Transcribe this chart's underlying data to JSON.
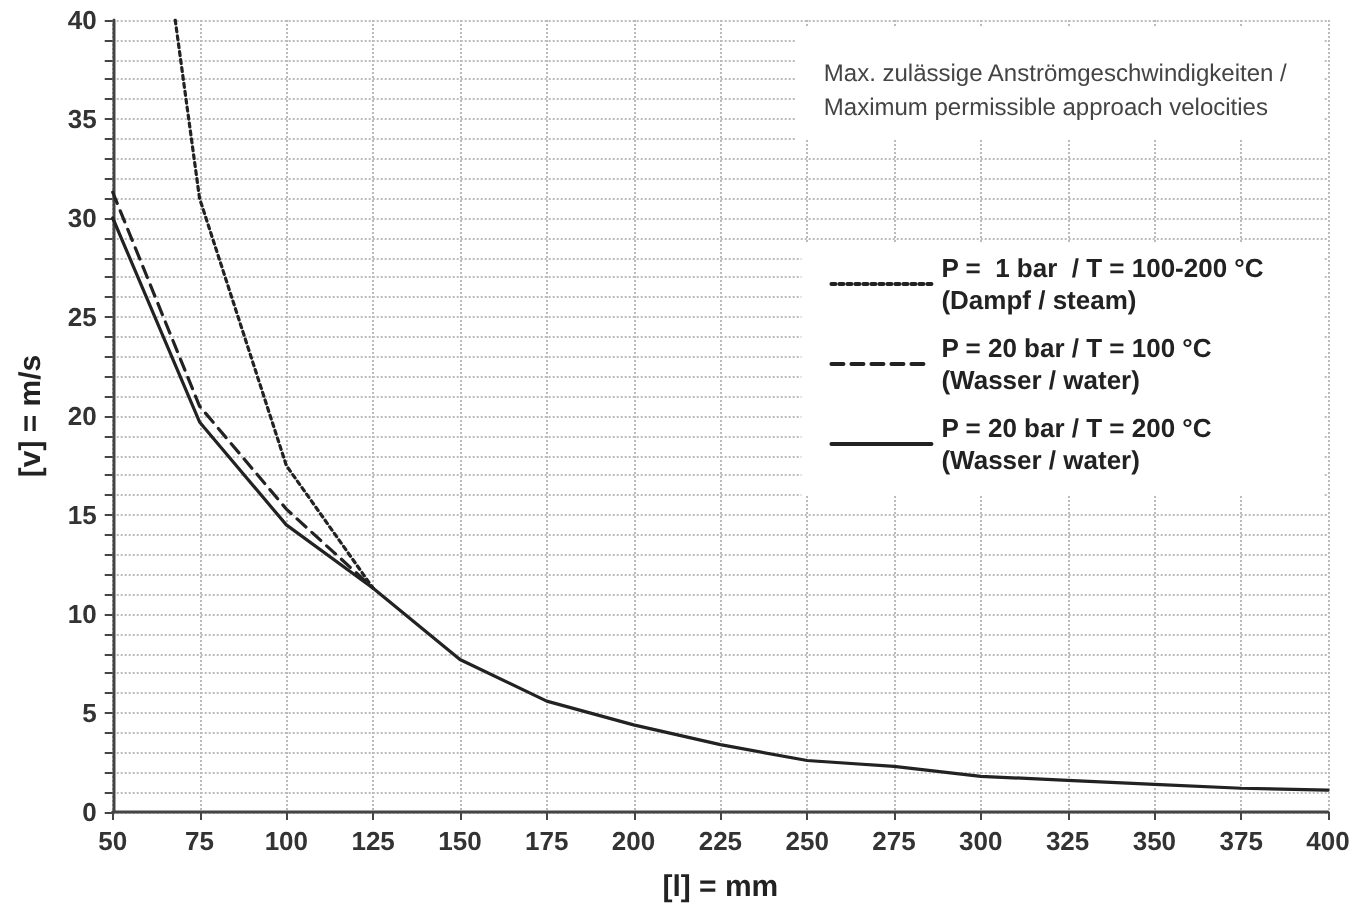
{
  "chart_data": {
    "type": "line",
    "subtitle": "Max. zulässige Anströmgeschwindigkeiten /\nMaximum permissible approach velocities",
    "xlabel": "[l] = mm",
    "ylabel": "[v] = m/s",
    "series": [
      {
        "name": "P =  1 bar  / T = 100-200 °C\n(Dampf / steam)",
        "color": "#222222",
        "line_style": "dotted",
        "x": [
          68,
          75,
          100,
          125
        ],
        "values": [
          40,
          31,
          17.5,
          11.3
        ]
      },
      {
        "name": "P = 20 bar / T = 100 °C\n(Wasser / water)",
        "color": "#222222",
        "line_style": "dashed",
        "x": [
          50,
          75,
          100,
          125
        ],
        "values": [
          31.3,
          20.5,
          15.3,
          11.3
        ]
      },
      {
        "name": "P = 20 bar / T = 200 °C\n(Wasser / water)",
        "color": "#222222",
        "line_style": "solid",
        "x": [
          50,
          75,
          100,
          125,
          150,
          175,
          200,
          225,
          250,
          275,
          300,
          325,
          350,
          375,
          400
        ],
        "values": [
          30,
          19.7,
          14.5,
          11.3,
          7.7,
          5.6,
          4.4,
          3.4,
          2.6,
          2.3,
          1.8,
          1.6,
          1.4,
          1.2,
          1.1
        ]
      }
    ],
    "xlim": [
      50,
      400
    ],
    "xticks": [
      50,
      75,
      100,
      125,
      150,
      175,
      200,
      225,
      250,
      275,
      300,
      325,
      350,
      375,
      400
    ],
    "ylim": [
      0,
      40
    ],
    "yticks": [
      0,
      {
        "value": 1,
        "label": null
      },
      {
        "value": 2,
        "label": null
      },
      {
        "value": 3,
        "label": null
      },
      {
        "value": 4,
        "label": null
      },
      5,
      {
        "value": 6,
        "label": null
      },
      {
        "value": 7,
        "label": null
      },
      {
        "value": 8,
        "label": null
      },
      {
        "value": 9,
        "label": null
      },
      10,
      {
        "value": 11,
        "label": null
      },
      {
        "value": 12,
        "label": null
      },
      {
        "value": 13,
        "label": null
      },
      {
        "value": 14,
        "label": null
      },
      15,
      {
        "value": 16,
        "label": null
      },
      {
        "value": 17,
        "label": null
      },
      {
        "value": 18,
        "label": null
      },
      {
        "value": 19,
        "label": null
      },
      20,
      {
        "value": 21,
        "label": null
      },
      {
        "value": 22,
        "label": null
      },
      {
        "value": 23,
        "label": null
      },
      {
        "value": 24,
        "label": null
      },
      25,
      {
        "value": 26,
        "label": null
      },
      {
        "value": 27,
        "label": null
      },
      {
        "value": 28,
        "label": null
      },
      {
        "value": 29,
        "label": null
      },
      30,
      {
        "value": 31,
        "label": null
      },
      {
        "value": 32,
        "label": null
      },
      {
        "value": 33,
        "label": null
      },
      {
        "value": 34,
        "label": null
      },
      35,
      {
        "value": 36,
        "label": null
      },
      {
        "value": 37,
        "label": null
      },
      {
        "value": 38,
        "label": null
      },
      {
        "value": 39,
        "label": null
      },
      40
    ],
    "grid": true,
    "legend": "top right",
    "marker": "none"
  }
}
